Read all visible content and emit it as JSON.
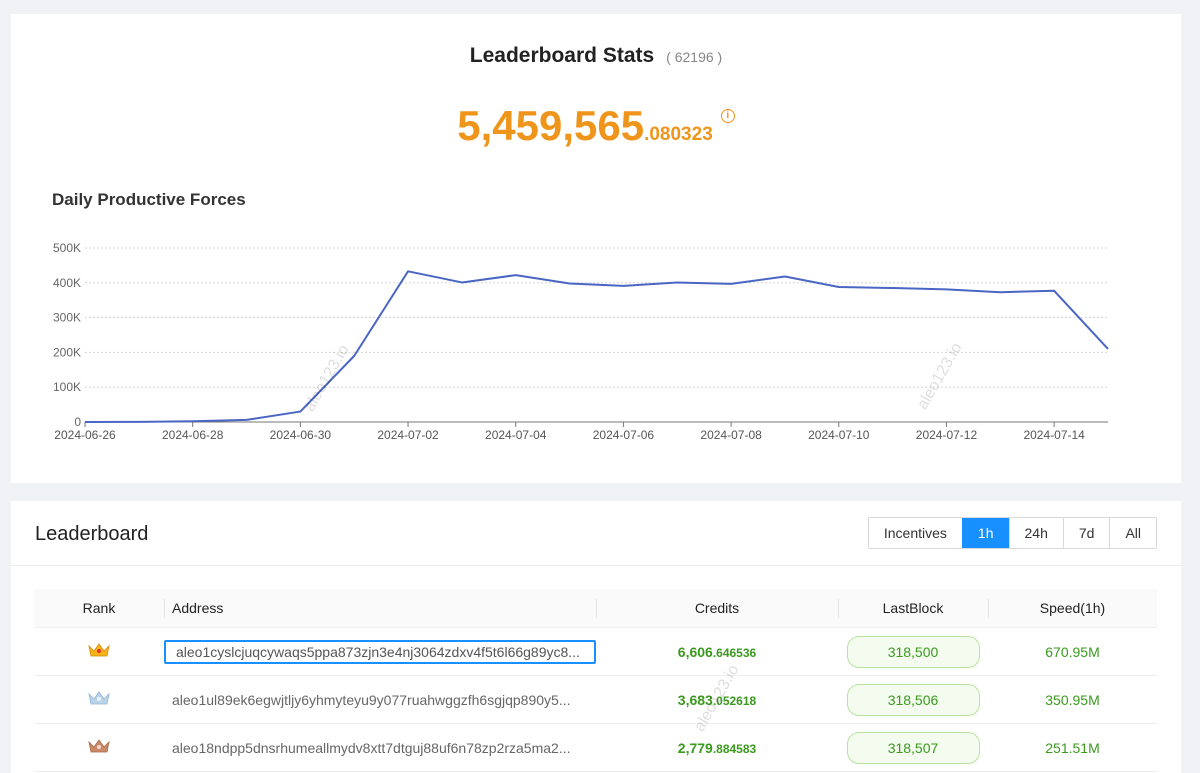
{
  "stats": {
    "title": "Leaderboard Stats",
    "count": "( 62196 )",
    "total_int": "5,459,565",
    "total_dec": ".080323"
  },
  "chart_title": "Daily Productive Forces",
  "chart_data": {
    "type": "line",
    "x": [
      "2024-06-26",
      "2024-06-27",
      "2024-06-28",
      "2024-06-29",
      "2024-06-30",
      "2024-07-01",
      "2024-07-02",
      "2024-07-03",
      "2024-07-04",
      "2024-07-05",
      "2024-07-06",
      "2024-07-07",
      "2024-07-08",
      "2024-07-09",
      "2024-07-10",
      "2024-07-11",
      "2024-07-12",
      "2024-07-13",
      "2024-07-14",
      "2024-07-15"
    ],
    "series": [
      {
        "values": [
          0,
          500,
          2000,
          6000,
          30000,
          190000,
          433000,
          401000,
          422000,
          398000,
          391000,
          401000,
          397000,
          418000,
          388000,
          385000,
          381000,
          373000,
          377000,
          210000
        ]
      }
    ],
    "x_tick_labels": [
      "2024-06-26",
      "2024-06-28",
      "2024-06-30",
      "2024-07-02",
      "2024-07-04",
      "2024-07-06",
      "2024-07-08",
      "2024-07-10",
      "2024-07-12",
      "2024-07-14"
    ],
    "y_ticks": [
      0,
      100000,
      200000,
      300000,
      400000,
      500000
    ],
    "y_tick_labels": [
      "0",
      "100K",
      "200K",
      "300K",
      "400K",
      "500K"
    ],
    "ylim": [
      0,
      500000
    ],
    "grid": true,
    "color": "#4a66c4"
  },
  "watermark": "aleo123.io",
  "board": {
    "title": "Leaderboard",
    "tabs": [
      {
        "label": "Incentives",
        "active": false
      },
      {
        "label": "1h",
        "active": true
      },
      {
        "label": "24h",
        "active": false
      },
      {
        "label": "7d",
        "active": false
      },
      {
        "label": "All",
        "active": false
      }
    ],
    "headers": {
      "rank": "Rank",
      "address": "Address",
      "credits": "Credits",
      "lastblock": "LastBlock",
      "speed": "Speed(1h)"
    },
    "rows": [
      {
        "rank_icon": "gold-crown-icon",
        "crown_color": "#f5b21b",
        "address": "aleo1cyslcjuqcywaqs5ppa873zjn3e4nj3064zdxv4f5t6l66g89yc8...",
        "credits_int": "6,606",
        "credits_dec": ".646536",
        "lastblock": "318,500",
        "speed": "670.95M"
      },
      {
        "rank_icon": "silver-crown-icon",
        "crown_color": "#bcd4ea",
        "address": "aleo1ul89ek6egwjtljy6yhmyteyu9y077ruahwggzfh6sgjqp890y5...",
        "credits_int": "3,683",
        "credits_dec": ".052618",
        "lastblock": "318,506",
        "speed": "350.95M"
      },
      {
        "rank_icon": "bronze-crown-icon",
        "crown_color": "#c98a6a",
        "address": "aleo18ndpp5dnsrhumeallmydv8xtt7dtguj88uf6n78zp2rza5ma2...",
        "credits_int": "2,779",
        "credits_dec": ".884583",
        "lastblock": "318,507",
        "speed": "251.51M"
      }
    ]
  }
}
